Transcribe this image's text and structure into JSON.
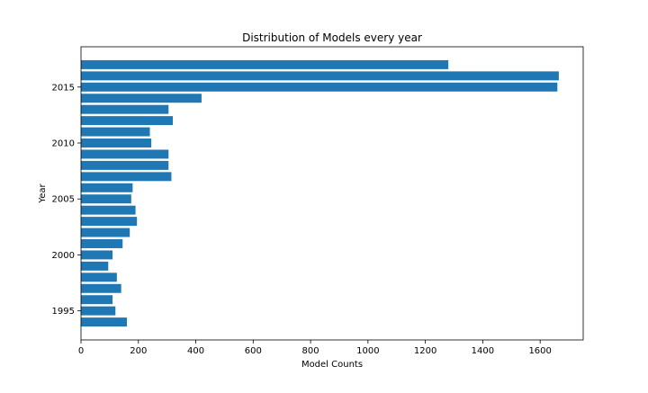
{
  "chart_data": {
    "type": "bar",
    "orientation": "horizontal",
    "title": "Distribution of Models every year",
    "xlabel": "Model Counts",
    "ylabel": "Year",
    "xlim": [
      0,
      1750
    ],
    "ylim": [
      1992.4,
      2018.6
    ],
    "x_ticks": [
      0,
      200,
      400,
      600,
      800,
      1000,
      1200,
      1400,
      1600
    ],
    "y_ticks": [
      1995,
      2000,
      2005,
      2010,
      2015
    ],
    "grid": false,
    "legend": "none",
    "bar_color": "#1f77b4",
    "categories": [
      1994,
      1995,
      1996,
      1997,
      1998,
      1999,
      2000,
      2001,
      2002,
      2003,
      2004,
      2005,
      2006,
      2007,
      2008,
      2009,
      2010,
      2011,
      2012,
      2013,
      2014,
      2015,
      2016,
      2017
    ],
    "values": [
      160,
      120,
      110,
      140,
      125,
      95,
      110,
      145,
      170,
      195,
      190,
      175,
      180,
      315,
      305,
      305,
      245,
      240,
      320,
      305,
      420,
      1660,
      1665,
      1280
    ]
  }
}
